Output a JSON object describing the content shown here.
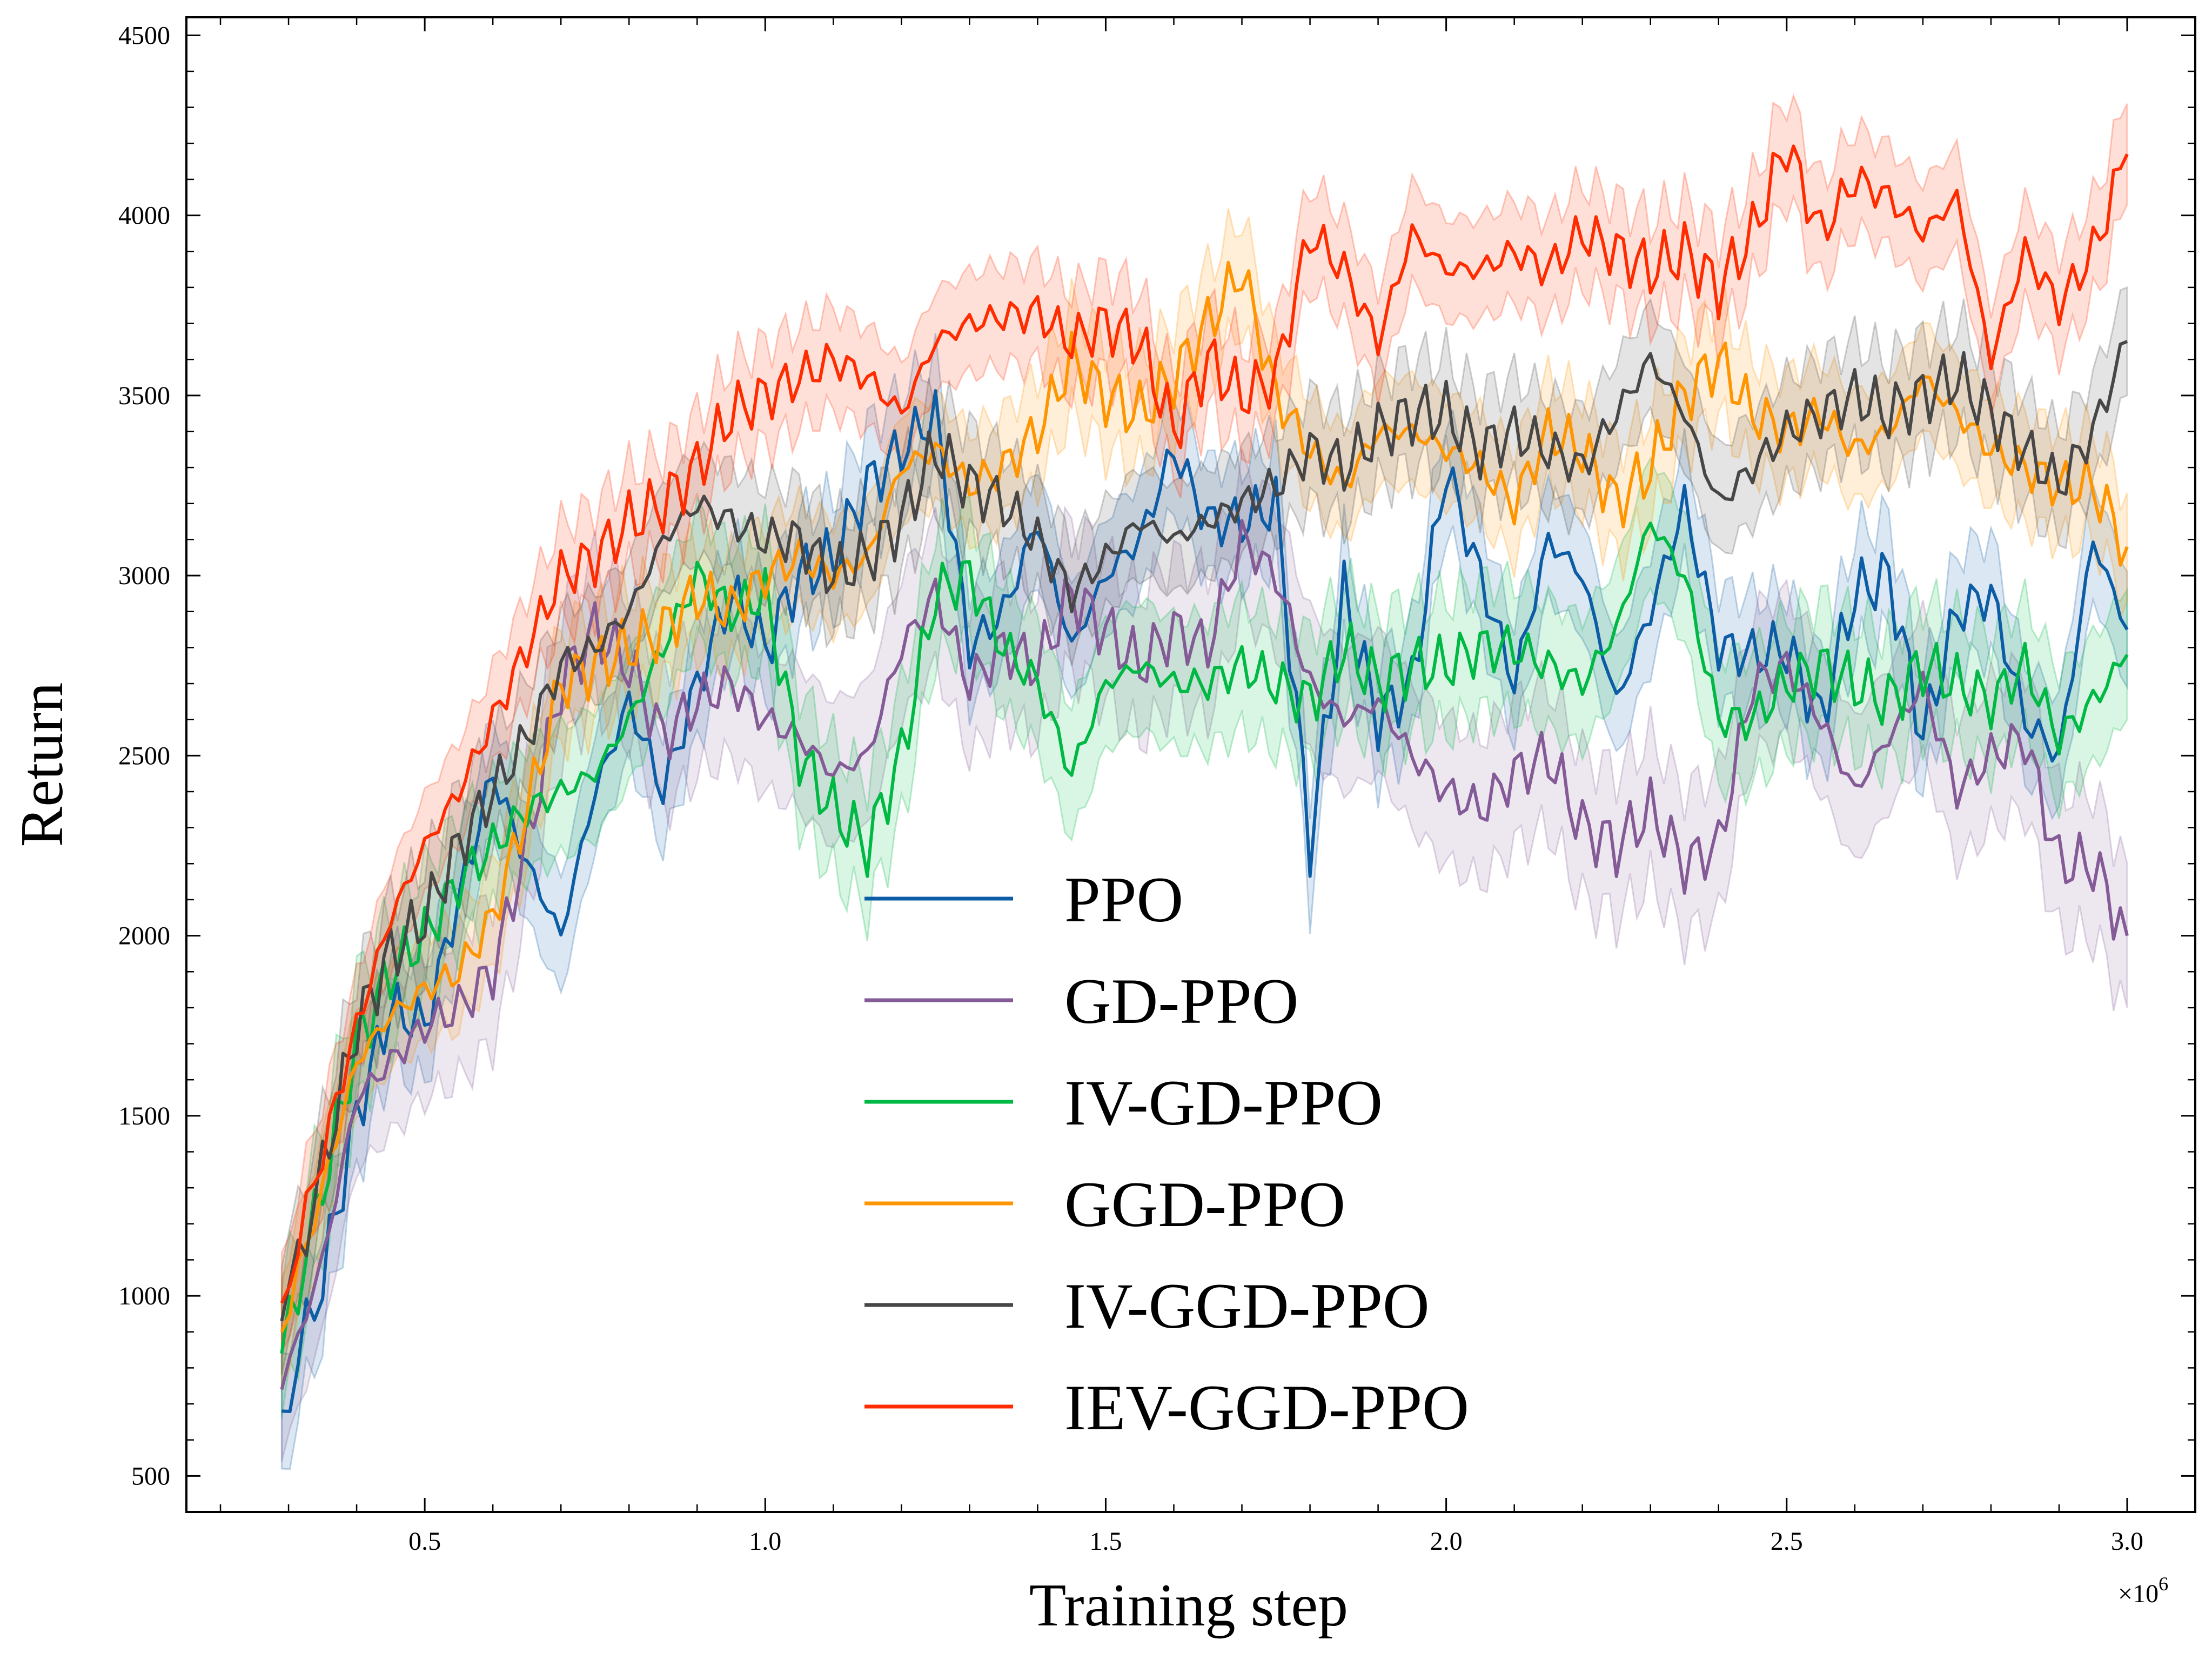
{
  "chart_data": {
    "type": "line",
    "title": "",
    "xlabel": "Training step",
    "ylabel": "Return",
    "x_multiplier_label": "×10^6",
    "x_multiplier_base": "×10",
    "x_multiplier_exp": "6",
    "xlim": [
      0.15,
      3.1
    ],
    "ylim": [
      400,
      4550
    ],
    "xticks": [
      0.5,
      1.0,
      1.5,
      2.0,
      2.5,
      3.0
    ],
    "xtick_labels": [
      "0.5",
      "1.0",
      "1.5",
      "2.0",
      "2.5",
      "3.0"
    ],
    "yticks": [
      500,
      1000,
      1500,
      2000,
      2500,
      3000,
      3500,
      4000,
      4500
    ],
    "ytick_labels": [
      "500",
      "1000",
      "1500",
      "2000",
      "2500",
      "3000",
      "3500",
      "4000",
      "4500"
    ],
    "legend_position": "lower-center",
    "x": [
      0.29,
      0.35,
      0.4,
      0.45,
      0.5,
      0.55,
      0.6,
      0.65,
      0.7,
      0.75,
      0.8,
      0.85,
      0.9,
      0.95,
      1.0,
      1.05,
      1.1,
      1.15,
      1.2,
      1.25,
      1.3,
      1.35,
      1.4,
      1.45,
      1.5,
      1.55,
      1.6,
      1.65,
      1.7,
      1.75,
      1.8,
      1.85,
      1.9,
      1.95,
      2.0,
      2.05,
      2.1,
      2.15,
      2.2,
      2.25,
      2.3,
      2.35,
      2.4,
      2.45,
      2.5,
      2.55,
      2.6,
      2.65,
      2.7,
      2.75,
      2.8,
      2.85,
      2.9,
      2.95,
      3.0
    ],
    "series": [
      {
        "name": "PPO",
        "color": "#0C5DA5",
        "values": [
          680,
          1050,
          1500,
          1800,
          1750,
          2100,
          2450,
          2200,
          2000,
          2400,
          2650,
          2400,
          2700,
          2950,
          2800,
          3000,
          3050,
          3250,
          3350,
          3450,
          2800,
          2900,
          3150,
          2800,
          3000,
          3100,
          3350,
          3150,
          3150,
          3200,
          2250,
          2950,
          2600,
          2700,
          3300,
          3000,
          2700,
          3100,
          3000,
          2650,
          2900,
          3200,
          2800,
          2780,
          2800,
          2600,
          2950,
          3000,
          2550,
          2900,
          2950,
          2600,
          2500,
          3100,
          2850
        ],
        "band": 160
      },
      {
        "name": "GD-PPO",
        "color": "#845B97",
        "values": [
          740,
          1100,
          1550,
          1650,
          1750,
          1800,
          1900,
          2250,
          2700,
          2850,
          2750,
          2550,
          2650,
          2700,
          2600,
          2550,
          2450,
          2500,
          2800,
          2950,
          2700,
          2800,
          2750,
          2950,
          2850,
          2750,
          2850,
          2800,
          3100,
          3000,
          2700,
          2600,
          2650,
          2500,
          2400,
          2350,
          2450,
          2500,
          2300,
          2250,
          2350,
          2200,
          2250,
          2700,
          2750,
          2600,
          2400,
          2550,
          2700,
          2400,
          2500,
          2550,
          2200,
          2200,
          2000
        ],
        "band": 200
      },
      {
        "name": "IV-GD-PPO",
        "color": "#00B945",
        "values": [
          840,
          1300,
          1700,
          1900,
          2000,
          2150,
          2250,
          2350,
          2400,
          2450,
          2600,
          2800,
          3000,
          2900,
          2950,
          2500,
          2350,
          2250,
          2500,
          2950,
          3000,
          2800,
          2700,
          2450,
          2700,
          2750,
          2700,
          2700,
          2750,
          2700,
          2650,
          2800,
          2700,
          2750,
          2750,
          2800,
          2800,
          2750,
          2700,
          2850,
          3150,
          3000,
          2600,
          2600,
          2700,
          2750,
          2700,
          2650,
          2750,
          2700,
          2650,
          2750,
          2550,
          2650,
          2780
        ],
        "band": 180
      },
      {
        "name": "GGD-PPO",
        "color": "#FF9500",
        "values": [
          900,
          1300,
          1650,
          1780,
          1850,
          1900,
          2050,
          2350,
          2700,
          2750,
          2800,
          2850,
          2950,
          2900,
          3000,
          3050,
          3000,
          3050,
          3300,
          3350,
          3250,
          3300,
          3400,
          3600,
          3500,
          3450,
          3550,
          3700,
          3850,
          3500,
          3350,
          3250,
          3400,
          3400,
          3350,
          3300,
          3200,
          3400,
          3350,
          3200,
          3300,
          3500,
          3600,
          3450,
          3400,
          3450,
          3350,
          3400,
          3550,
          3450,
          3350,
          3300,
          3250,
          3250,
          3080
        ],
        "band": 150
      },
      {
        "name": "IV-GGD-PPO",
        "color": "#474747",
        "values": [
          930,
          1350,
          1750,
          1950,
          2050,
          2250,
          2400,
          2550,
          2750,
          2800,
          2900,
          3100,
          3200,
          3150,
          3100,
          3100,
          3000,
          3050,
          3150,
          3350,
          3250,
          3200,
          3100,
          2950,
          3050,
          3150,
          3100,
          3150,
          3200,
          3250,
          3350,
          3300,
          3400,
          3450,
          3450,
          3350,
          3400,
          3350,
          3300,
          3450,
          3600,
          3450,
          3200,
          3300,
          3400,
          3450,
          3500,
          3450,
          3500,
          3550,
          3450,
          3350,
          3250,
          3400,
          3650
        ],
        "band": 150
      },
      {
        "name": "IEV-GGD-PPO",
        "color": "#FF2C00",
        "values": [
          980,
          1400,
          1750,
          2050,
          2250,
          2400,
          2600,
          2800,
          3000,
          3050,
          3150,
          3200,
          3300,
          3450,
          3500,
          3550,
          3600,
          3550,
          3450,
          3650,
          3700,
          3720,
          3730,
          3650,
          3700,
          3650,
          3400,
          3600,
          3500,
          3550,
          3950,
          3850,
          3650,
          3950,
          3850,
          3850,
          3900,
          3850,
          3950,
          3900,
          3850,
          3900,
          3800,
          3950,
          4200,
          3950,
          4100,
          4050,
          3950,
          4050,
          3600,
          3900,
          3750,
          3900,
          4170
        ],
        "band": 140
      }
    ]
  }
}
